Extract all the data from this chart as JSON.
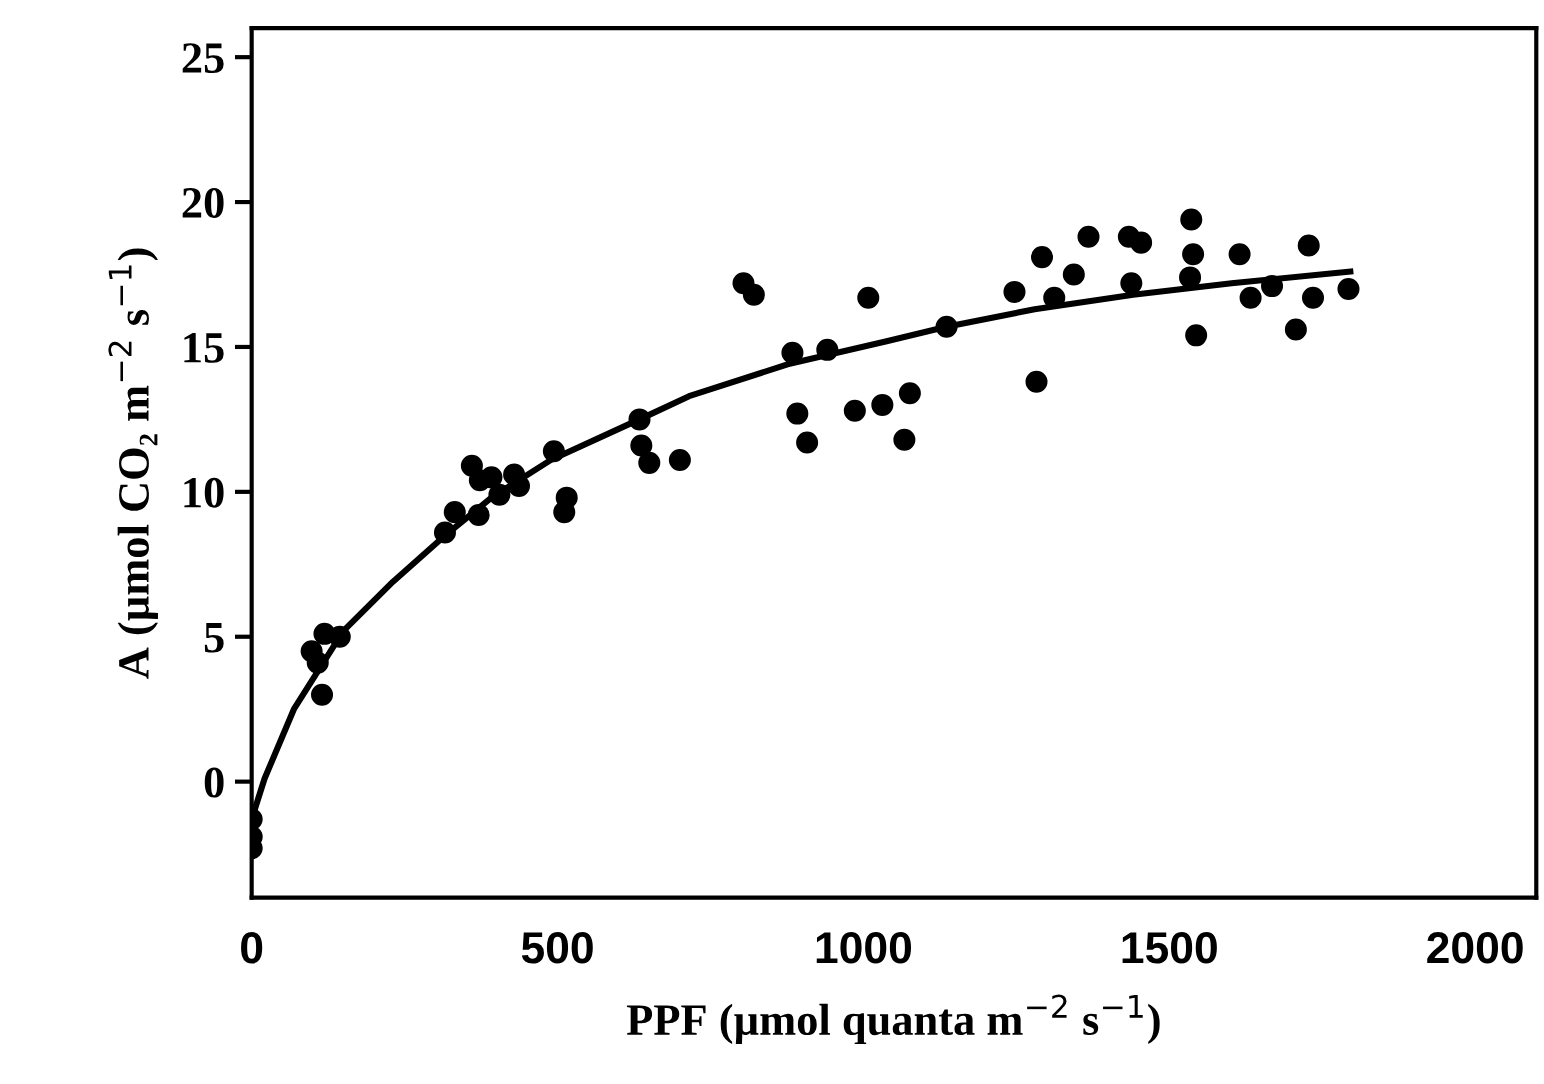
{
  "chart_data": {
    "type": "scatter",
    "xlabel": "PPF (µmol quanta m$^{−2}$ s$^{−1}$)",
    "ylabel": "A (µmol CO₂ m$^{−2}$ s$^{−1}$)",
    "xlim": [
      0,
      2100
    ],
    "xticks": [
      0,
      500,
      1000,
      1500,
      2000
    ],
    "ylim": [
      -4,
      26
    ],
    "yticks": [
      0,
      5,
      10,
      15,
      20,
      25
    ],
    "grid": false,
    "series": [
      {
        "color": "#000000",
        "marker": "circle",
        "x": [
          0,
          0,
          0,
          98,
          108,
          119,
          115,
          144,
          316,
          332,
          360,
          373,
          371,
          392,
          405,
          429,
          437,
          494,
          515,
          511,
          634,
          637,
          650,
          700,
          804,
          821,
          884,
          892,
          908,
          941,
          986,
          1008,
          1031,
          1067,
          1076,
          1136,
          1247,
          1283,
          1292,
          1312,
          1344,
          1368,
          1434,
          1454,
          1438,
          1536,
          1539,
          1534,
          1544,
          1615,
          1633,
          1668,
          1707,
          1728,
          1735,
          1793
        ],
        "values": [
          -1.3,
          -1.9,
          -2.3,
          4.5,
          4.1,
          5.1,
          3.0,
          5.0,
          8.6,
          9.3,
          10.9,
          10.4,
          9.2,
          10.5,
          9.9,
          10.6,
          10.2,
          11.4,
          9.8,
          9.3,
          12.5,
          11.6,
          11.0,
          11.1,
          17.2,
          16.8,
          14.8,
          12.7,
          11.7,
          14.9,
          12.8,
          16.7,
          13.0,
          11.8,
          13.4,
          15.7,
          16.9,
          13.8,
          18.1,
          16.7,
          17.5,
          18.8,
          18.8,
          18.6,
          17.2,
          19.4,
          18.2,
          17.4,
          15.4,
          18.2,
          16.7,
          17.1,
          15.6,
          18.5,
          16.7,
          17.0
        ]
      },
      {
        "type": "line",
        "color": "#000000",
        "marker": "none",
        "line_style": "solid",
        "x": [
          0,
          21,
          69,
          150,
          231,
          311,
          392,
          489,
          634,
          715,
          876,
          1038,
          1136,
          1280,
          1441,
          1602,
          1796
        ],
        "values": [
          -1.3,
          0.1,
          2.5,
          5.2,
          6.9,
          8.4,
          9.8,
          11.1,
          12.5,
          13.3,
          14.4,
          15.2,
          15.7,
          16.3,
          16.8,
          17.2,
          17.6
        ]
      }
    ]
  }
}
